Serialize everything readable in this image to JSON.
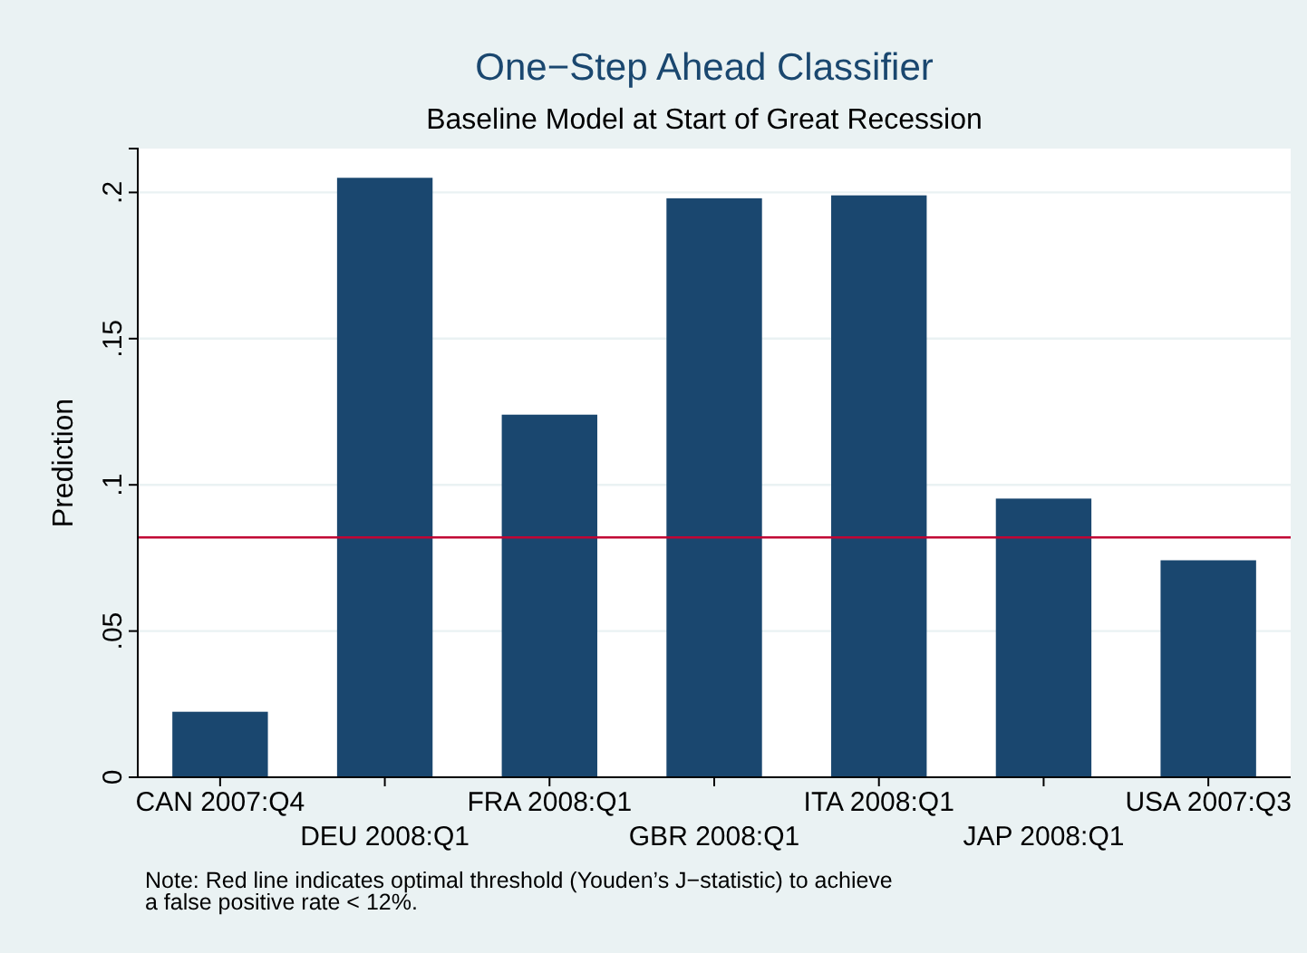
{
  "chart_data": {
    "type": "bar",
    "title": "One−Step Ahead Classifier",
    "subtitle": "Baseline Model at Start of Great Recession",
    "ylabel": "Prediction",
    "categories": [
      "CAN 2007:Q4",
      "DEU 2008:Q1",
      "FRA 2008:Q1",
      "GBR 2008:Q1",
      "ITA 2008:Q1",
      "JAP 2008:Q1",
      "USA 2007:Q3"
    ],
    "values": [
      0.0224,
      0.205,
      0.124,
      0.198,
      0.199,
      0.0953,
      0.0742
    ],
    "color": "#1a476f",
    "ylim": [
      0,
      0.215
    ],
    "yticks": [
      {
        "value": 0,
        "label": "0"
      },
      {
        "value": 0.05,
        "label": ".05"
      },
      {
        "value": 0.1,
        "label": ".1"
      },
      {
        "value": 0.15,
        "label": ".15"
      },
      {
        "value": 0.2,
        "label": ".2"
      }
    ],
    "grid": "y",
    "ref_lines": [
      {
        "axis": "y",
        "value": 0.082,
        "label": null,
        "color": "#c10534"
      }
    ],
    "annotations": [
      "Note: Red line indicates optimal threshold (Youden’s J−statistic) to achieve\na false positive rate < 12%."
    ]
  }
}
